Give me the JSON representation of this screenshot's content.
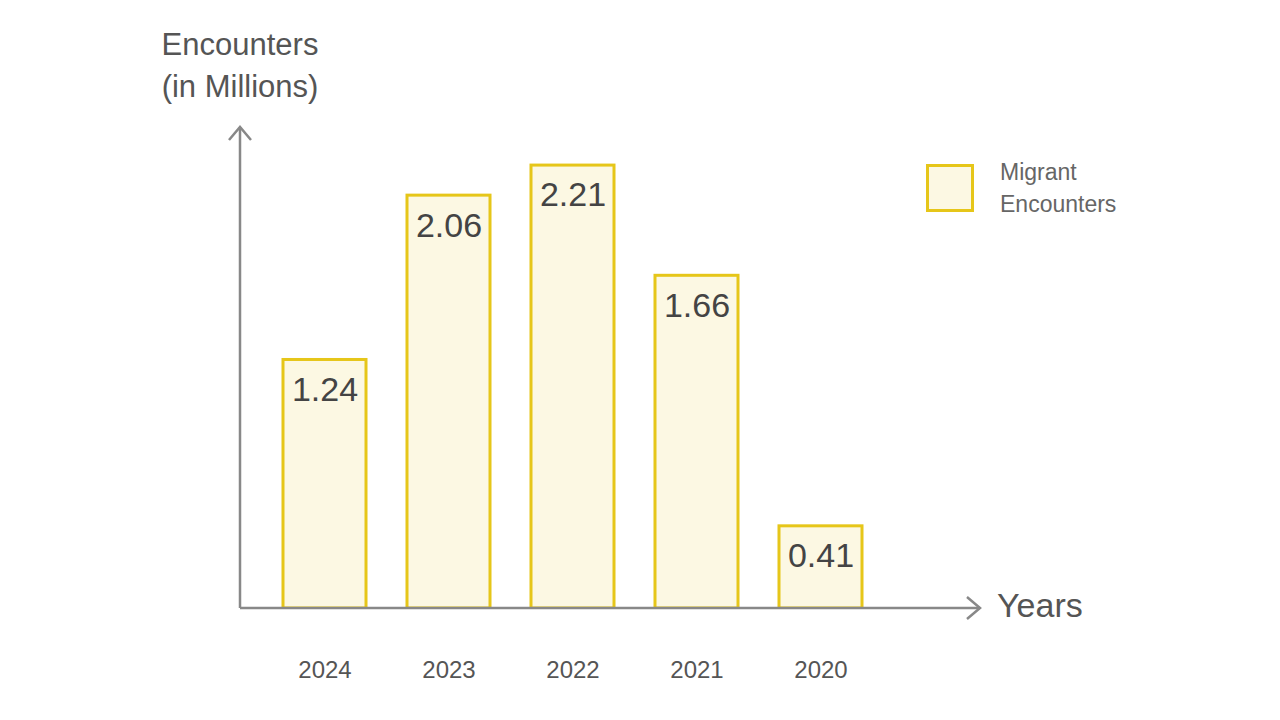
{
  "chart_data": {
    "type": "bar",
    "y_label": "Encounters (in Millions)",
    "x_label": "Years",
    "categories": [
      "2024",
      "2023",
      "2022",
      "2021",
      "2020"
    ],
    "series": [
      {
        "name": "Migrant Encounters",
        "color": "#e6c619",
        "values": [
          1.24,
          2.06,
          2.21,
          1.66,
          0.41
        ]
      }
    ],
    "ylim": [
      0,
      2.4
    ],
    "yticks": [],
    "grid": false,
    "data_labels": true,
    "tick_labels": "x",
    "legend": "top-right"
  }
}
